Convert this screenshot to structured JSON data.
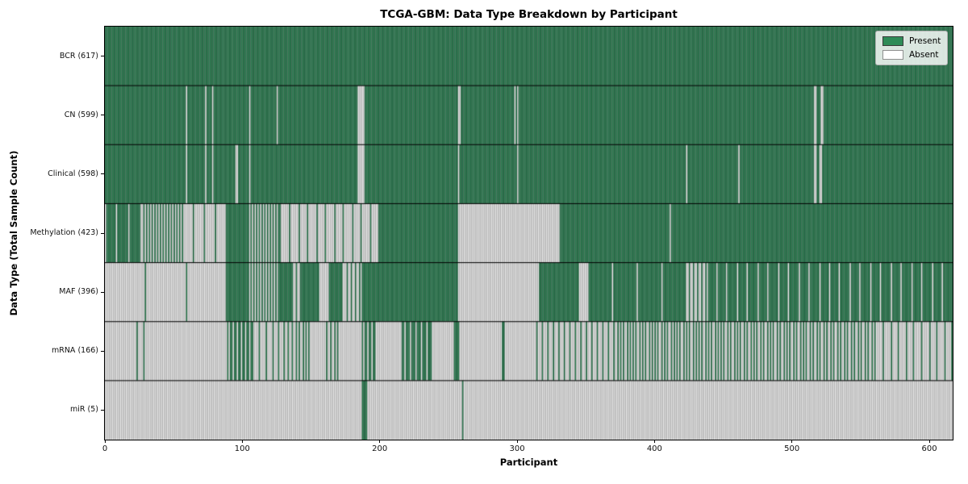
{
  "chart_data": {
    "type": "heatmap",
    "title": "TCGA-GBM: Data Type Breakdown by Participant",
    "xlabel": "Participant",
    "ylabel": "Data Type (Total Sample Count)",
    "x_ticks": [
      0,
      100,
      200,
      300,
      400,
      500,
      600
    ],
    "x_max": 617,
    "grid": false,
    "legend_position": "upper right",
    "legend": [
      {
        "label": "Present",
        "color": "#2e8b57",
        "edge": "#3a3a3a"
      },
      {
        "label": "Absent",
        "color": "#ffffff",
        "edge": "#8f8f8f"
      }
    ],
    "colors": {
      "present": "#2e8b57",
      "present_edge": "#1d4a34",
      "absent": "#ffffff",
      "absent_edge": "#8f8f8f",
      "frame": "#000000",
      "background": "#ffffff"
    },
    "rows": [
      {
        "label": "BCR (617)",
        "name": "BCR",
        "total_present": 617,
        "segments": [
          [
            617,
            617
          ]
        ]
      },
      {
        "label": "CN (599)",
        "name": "CN",
        "total_present": 599,
        "segments": [
          [
            59,
            59
          ],
          [
            1,
            0
          ],
          [
            13,
            13
          ],
          [
            1,
            0
          ],
          [
            4,
            4
          ],
          [
            1,
            0
          ],
          [
            26,
            26
          ],
          [
            1,
            0
          ],
          [
            19,
            19
          ],
          [
            1,
            0
          ],
          [
            58,
            58
          ],
          [
            5,
            0
          ],
          [
            68,
            68
          ],
          [
            2,
            0
          ],
          [
            39,
            39
          ],
          [
            1,
            0
          ],
          [
            1,
            1
          ],
          [
            1,
            0
          ],
          [
            215,
            215
          ],
          [
            2,
            0
          ],
          [
            3,
            3
          ],
          [
            2,
            0
          ],
          [
            94,
            94
          ]
        ]
      },
      {
        "label": "Clinical (598)",
        "name": "Clinical",
        "total_present": 598,
        "segments": [
          [
            59,
            59
          ],
          [
            1,
            0
          ],
          [
            13,
            13
          ],
          [
            1,
            0
          ],
          [
            4,
            4
          ],
          [
            1,
            0
          ],
          [
            16,
            16
          ],
          [
            2,
            0
          ],
          [
            8,
            8
          ],
          [
            1,
            0
          ],
          [
            78,
            78
          ],
          [
            5,
            0
          ],
          [
            68,
            68
          ],
          [
            1,
            0
          ],
          [
            42,
            42
          ],
          [
            1,
            0
          ],
          [
            122,
            122
          ],
          [
            1,
            0
          ],
          [
            37,
            37
          ],
          [
            1,
            0
          ],
          [
            54,
            54
          ],
          [
            2,
            0
          ],
          [
            2,
            2
          ],
          [
            2,
            0
          ],
          [
            95,
            95
          ]
        ]
      },
      {
        "label": "Methylation (423)",
        "name": "Methylation",
        "total_present": 423,
        "segments": [
          [
            26,
            23
          ],
          [
            31,
            15
          ],
          [
            32,
            4
          ],
          [
            16,
            16
          ],
          [
            23,
            12
          ],
          [
            33,
            5
          ],
          [
            39,
            6
          ],
          [
            57,
            57
          ],
          [
            74,
            0
          ],
          [
            80,
            80
          ],
          [
            1,
            0
          ],
          [
            205,
            205
          ]
        ]
      },
      {
        "label": "MAF (396)",
        "name": "MAF",
        "total_present": 396,
        "segments": [
          [
            89,
            3
          ],
          [
            16,
            16
          ],
          [
            23,
            12
          ],
          [
            9,
            9
          ],
          [
            6,
            2
          ],
          [
            13,
            13
          ],
          [
            7,
            0
          ],
          [
            10,
            10
          ],
          [
            13,
            4
          ],
          [
            18,
            17
          ],
          [
            53,
            53
          ],
          [
            59,
            0
          ],
          [
            29,
            29
          ],
          [
            6,
            0
          ],
          [
            72,
            68
          ],
          [
            15,
            5
          ],
          [
            179,
            155
          ]
        ]
      },
      {
        "label": "mRNA (166)",
        "name": "mRNA",
        "total_present": 166,
        "segments": [
          [
            22,
            0
          ],
          [
            2,
            1
          ],
          [
            4,
            0
          ],
          [
            1,
            1
          ],
          [
            59,
            0
          ],
          [
            20,
            13
          ],
          [
            19,
            4
          ],
          [
            10,
            3
          ],
          [
            12,
            5
          ],
          [
            10,
            0
          ],
          [
            11,
            4
          ],
          [
            16,
            0
          ],
          [
            11,
            7
          ],
          [
            18,
            0
          ],
          [
            23,
            17
          ],
          [
            15,
            0
          ],
          [
            5,
            4
          ],
          [
            30,
            0
          ],
          [
            3,
            2
          ],
          [
            20,
            0
          ],
          [
            60,
            15
          ],
          [
            80,
            35
          ],
          [
            60,
            25
          ],
          [
            50,
            20
          ],
          [
            56,
            10
          ]
        ]
      },
      {
        "label": "miR (5)",
        "name": "miR",
        "total_present": 5,
        "segments": [
          [
            186,
            0
          ],
          [
            5,
            4
          ],
          [
            69,
            0
          ],
          [
            1,
            1
          ],
          [
            356,
            0
          ]
        ]
      }
    ]
  }
}
